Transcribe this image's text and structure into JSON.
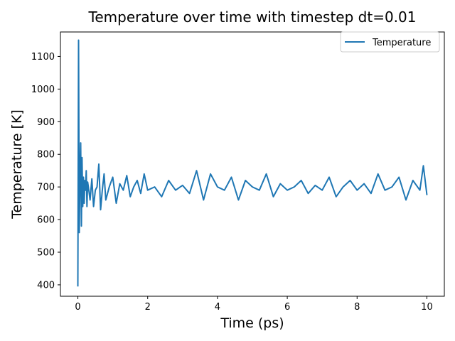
{
  "chart_data": {
    "type": "line",
    "title": "Temperature over time with timestep dt=0.01",
    "xlabel": "Time (ps)",
    "ylabel": "Temperature [K]",
    "xlim": [
      -0.5,
      10.5
    ],
    "ylim": [
      365,
      1175
    ],
    "xticks": [
      0,
      2,
      4,
      6,
      8,
      10
    ],
    "yticks": [
      400,
      500,
      600,
      700,
      800,
      900,
      1000,
      1100
    ],
    "grid": false,
    "legend_position": "top-right",
    "series": [
      {
        "name": "Temperature",
        "color": "#1f77b4",
        "x": [
          0.0,
          0.02,
          0.04,
          0.06,
          0.08,
          0.1,
          0.12,
          0.14,
          0.16,
          0.18,
          0.2,
          0.22,
          0.24,
          0.26,
          0.28,
          0.3,
          0.35,
          0.4,
          0.45,
          0.5,
          0.55,
          0.6,
          0.65,
          0.7,
          0.75,
          0.8,
          0.9,
          1.0,
          1.1,
          1.2,
          1.3,
          1.4,
          1.5,
          1.6,
          1.7,
          1.8,
          1.9,
          2.0,
          2.2,
          2.4,
          2.6,
          2.8,
          3.0,
          3.2,
          3.4,
          3.6,
          3.8,
          4.0,
          4.2,
          4.4,
          4.6,
          4.8,
          5.0,
          5.2,
          5.4,
          5.6,
          5.8,
          6.0,
          6.2,
          6.4,
          6.6,
          6.8,
          7.0,
          7.2,
          7.4,
          7.6,
          7.8,
          8.0,
          8.2,
          8.4,
          8.6,
          8.8,
          9.0,
          9.2,
          9.4,
          9.6,
          9.8,
          9.9,
          10.0
        ],
        "y": [
          395,
          1150,
          560,
          740,
          835,
          580,
          790,
          640,
          730,
          650,
          720,
          690,
          750,
          640,
          715,
          700,
          660,
          725,
          640,
          690,
          700,
          770,
          630,
          690,
          740,
          660,
          700,
          730,
          650,
          710,
          690,
          735,
          670,
          700,
          720,
          680,
          740,
          690,
          700,
          670,
          720,
          690,
          705,
          680,
          750,
          660,
          740,
          700,
          690,
          730,
          660,
          720,
          700,
          690,
          740,
          670,
          710,
          690,
          700,
          720,
          680,
          705,
          690,
          730,
          670,
          700,
          720,
          690,
          710,
          680,
          740,
          690,
          700,
          730,
          660,
          720,
          690,
          765,
          675
        ]
      }
    ]
  }
}
